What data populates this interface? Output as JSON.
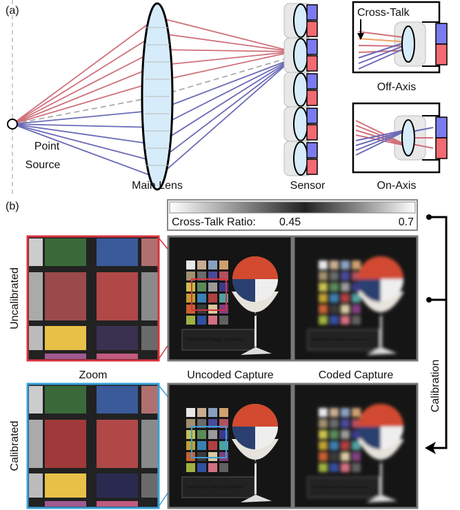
{
  "panel_a": {
    "label": "(a)",
    "point_source": [
      "Point",
      "Source"
    ],
    "main_lens": "Main Lens",
    "sensor": "Sensor",
    "inset_off": {
      "annotation": "Cross-Talk",
      "caption": "Off-Axis"
    },
    "inset_on": {
      "caption": "On-Axis"
    }
  },
  "panel_b": {
    "label": "(b)",
    "colorbar": {
      "title": "Cross-Talk Ratio:",
      "low": "0.45",
      "high": "0.7"
    },
    "rows": [
      "Uncalibrated",
      "Calibrated"
    ],
    "columns": [
      "Zoom",
      "Uncoded Capture",
      "Coded Capture"
    ],
    "arrow": "Calibration",
    "book_title": "The Multibus Design Guidebook"
  }
}
